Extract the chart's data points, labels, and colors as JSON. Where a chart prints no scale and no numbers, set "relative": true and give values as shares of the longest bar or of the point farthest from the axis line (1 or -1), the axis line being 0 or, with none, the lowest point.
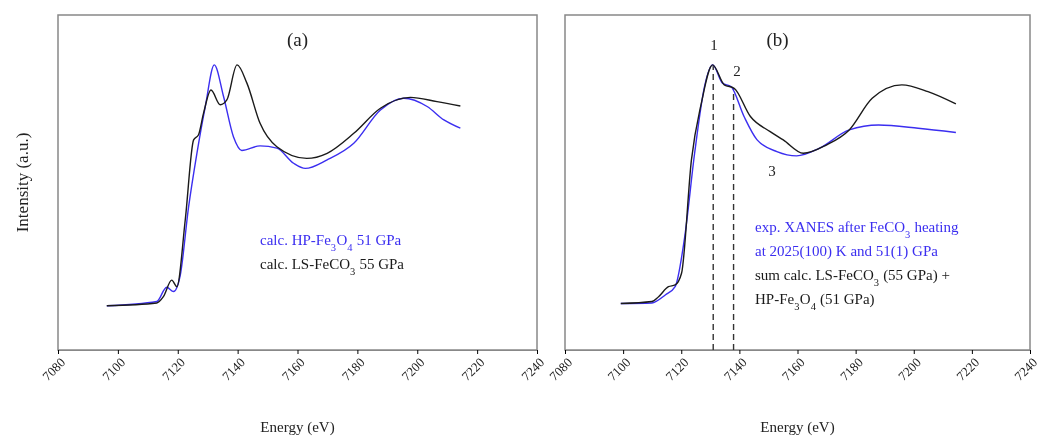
{
  "chart_data": [
    {
      "type": "line",
      "title": "(a)",
      "xlabel": "Energy (eV)",
      "ylabel": "Intensity (a.u.)",
      "relative": true,
      "xlim": [
        7080,
        7240
      ],
      "xticks": [
        7080,
        7100,
        7120,
        7140,
        7160,
        7180,
        7200,
        7220,
        7240
      ],
      "line_style": "solid",
      "series": [
        {
          "name": "calc. HP-Fe$_{3}$O$_{4}$ 51 GPa",
          "color": "#3b2ef0",
          "x": [
            7096.3,
            7113.0,
            7116.3,
            7118.6,
            7120.8,
            7123.6,
            7126.4,
            7129.2,
            7132.2,
            7135.3,
            7138.6,
            7141.4,
            7147.5,
            7153.1,
            7158.7,
            7162.6,
            7169.9,
            7178.8,
            7187.7,
            7195.5,
            7203.3,
            7208.9,
            7214.4
          ],
          "values": [
            0.155,
            0.17,
            0.22,
            0.205,
            0.26,
            0.5,
            0.69,
            0.854,
            1.0,
            0.889,
            0.748,
            0.7,
            0.716,
            0.708,
            0.655,
            0.637,
            0.667,
            0.725,
            0.842,
            0.883,
            0.854,
            0.807,
            0.778
          ]
        },
        {
          "name": "calc. LS-FeCO$_{3}$ 55 GPa",
          "color": "#1a1a1a",
          "x": [
            7096.3,
            7113.0,
            7115.2,
            7118.0,
            7119.7,
            7122.5,
            7125.3,
            7126.9,
            7128.6,
            7131.1,
            7134.2,
            7136.4,
            7139.8,
            7143.1,
            7147.5,
            7153.1,
            7163.1,
            7169.9,
            7178.8,
            7187.7,
            7197.7,
            7206.6,
            7214.4
          ],
          "values": [
            0.155,
            0.165,
            0.187,
            0.245,
            0.222,
            0.456,
            0.737,
            0.754,
            0.83,
            0.912,
            0.86,
            0.877,
            1.0,
            0.936,
            0.795,
            0.713,
            0.672,
            0.69,
            0.76,
            0.848,
            0.886,
            0.871,
            0.856
          ]
        }
      ]
    },
    {
      "type": "line",
      "title": "(b)",
      "xlabel": "Energy (eV)",
      "relative": true,
      "xlim": [
        7080,
        7240
      ],
      "xticks": [
        7080,
        7100,
        7120,
        7140,
        7160,
        7180,
        7200,
        7220,
        7240
      ],
      "line_style": "solid",
      "ref_lines": [
        {
          "axis": "x",
          "value": 7131,
          "line_style": "dashed",
          "color": "#333333"
        },
        {
          "axis": "x",
          "value": 7138,
          "line_style": "dashed",
          "color": "#333333"
        }
      ],
      "annotations": [
        "1",
        "2",
        "3"
      ],
      "series": [
        {
          "name": "exp. XANES after FeCO$_{3}$ heating at 2025(100) K and 51(1) GPa",
          "color": "#3b2ef0",
          "x": [
            7099.2,
            7109.9,
            7114.5,
            7117.9,
            7121.2,
            7124.6,
            7128.0,
            7130.8,
            7134.2,
            7137.1,
            7141.6,
            7146.1,
            7152.9,
            7159.7,
            7167.6,
            7177.8,
            7187.9,
            7201.5,
            7214.5
          ],
          "values": [
            0.163,
            0.165,
            0.193,
            0.222,
            0.398,
            0.69,
            0.924,
            1.0,
            0.936,
            0.924,
            0.819,
            0.737,
            0.696,
            0.681,
            0.708,
            0.772,
            0.789,
            0.778,
            0.763
          ]
        },
        {
          "name": "sum calc. LS-FeCO$_{3}$ (55 GPa) + HP-Fe$_{3}$O$_{4}$ (51 GPa)",
          "color": "#1a1a1a",
          "x": [
            7099.2,
            7109.9,
            7112.2,
            7115.6,
            7117.9,
            7120.1,
            7123.5,
            7126.9,
            7130.8,
            7134.8,
            7138.2,
            7143.8,
            7150.6,
            7155.1,
            7162.0,
            7169.9,
            7177.8,
            7185.7,
            7195.9,
            7204.9,
            7214.5
          ],
          "values": [
            0.163,
            0.17,
            0.187,
            0.222,
            0.228,
            0.269,
            0.667,
            0.865,
            1.0,
            0.93,
            0.918,
            0.819,
            0.766,
            0.737,
            0.69,
            0.719,
            0.772,
            0.883,
            0.93,
            0.906,
            0.863
          ]
        }
      ]
    }
  ]
}
